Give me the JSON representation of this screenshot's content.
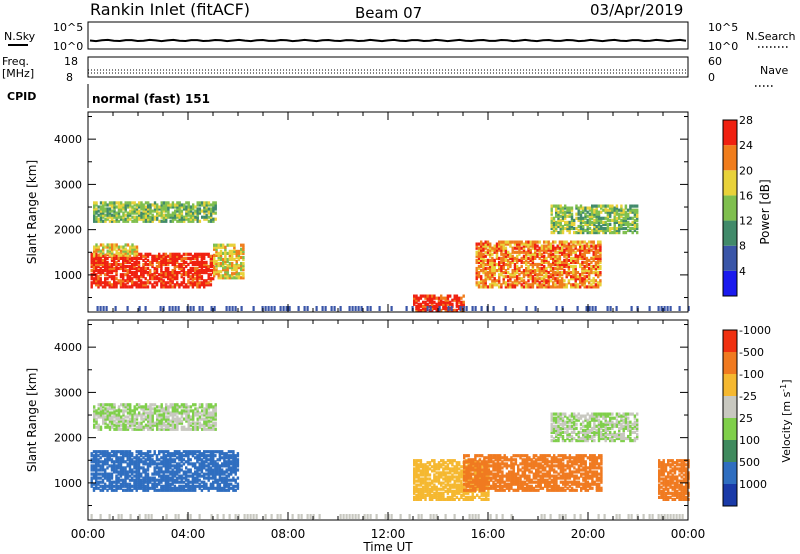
{
  "header": {
    "station": "Rankin Inlet (fitACF)",
    "beam": "Beam 07",
    "date": "03/Apr/2019"
  },
  "top_panels": {
    "nsky_label": "N.Sky",
    "nsky_ticks": [
      "10^5",
      "10^0"
    ],
    "nsearch_label": "N.Search",
    "nsearch_ticks": [
      "10^5",
      "10^0"
    ],
    "freq_label_1": "Freq.",
    "freq_label_2": "[MHz]",
    "freq_ticks": [
      "18",
      "8"
    ],
    "nave_label": "Nave",
    "nave_ticks": [
      "60",
      "0"
    ],
    "cpid_label": "CPID",
    "cpid_text": "normal (fast) 151"
  },
  "chart_data": [
    {
      "type": "heatmap",
      "name": "power",
      "ylabel": "Slant Range [km]",
      "yticks": [
        1000,
        2000,
        3000,
        4000
      ],
      "ylim": [
        180,
        4600
      ],
      "xlim_hours": [
        0,
        24
      ],
      "colorbar_label": "Power [dB]",
      "colorbar_ticks": [
        "4",
        "8",
        "12",
        "16",
        "20",
        "24",
        "28"
      ],
      "colorbar_colors": [
        "#1a1aee",
        "#3a56a8",
        "#418a6a",
        "#7fbf4e",
        "#e8d23a",
        "#f07d1c",
        "#f02010"
      ],
      "echo_regions": [
        {
          "t": [
            0.1,
            5.0
          ],
          "r": [
            700,
            1450
          ],
          "level": 6
        },
        {
          "t": [
            0.2,
            2.0
          ],
          "r": [
            1400,
            1650
          ],
          "level": 4
        },
        {
          "t": [
            5.0,
            6.2
          ],
          "r": [
            900,
            1650
          ],
          "level": 4
        },
        {
          "t": [
            0.2,
            5.1
          ],
          "r": [
            2150,
            2600
          ],
          "level": 3
        },
        {
          "t": [
            13.0,
            15.0
          ],
          "r": [
            180,
            500
          ],
          "level": 6
        },
        {
          "t": [
            15.5,
            20.5
          ],
          "r": [
            700,
            1700
          ],
          "level": 5
        },
        {
          "t": [
            18.5,
            22.0
          ],
          "r": [
            1900,
            2500
          ],
          "level": 3
        }
      ]
    },
    {
      "type": "heatmap",
      "name": "velocity",
      "ylabel": "Slant Range [km]",
      "yticks": [
        1000,
        2000,
        3000,
        4000
      ],
      "ylim": [
        180,
        4600
      ],
      "xlim_hours": [
        0,
        24
      ],
      "xticks": [
        "00:00",
        "04:00",
        "08:00",
        "12:00",
        "16:00",
        "20:00",
        "00:00"
      ],
      "xlabel": "Time UT",
      "colorbar_label": "Velocity [m s^-1]",
      "colorbar_ticks": [
        "1000",
        "500",
        "100",
        "25",
        "-25",
        "-100",
        "-500",
        "-1000"
      ],
      "colorbar_colors": [
        "#1a3aa8",
        "#2f6ec0",
        "#3f8a5e",
        "#7fcf4a",
        "#c8c8c0",
        "#f5b830",
        "#f07a20",
        "#f03010"
      ],
      "echo_regions": [
        {
          "t": [
            0.1,
            6.0
          ],
          "r": [
            800,
            1700
          ],
          "v": 500
        },
        {
          "t": [
            0.2,
            5.1
          ],
          "r": [
            2150,
            2700
          ],
          "v": 0
        },
        {
          "t": [
            13.0,
            16.0
          ],
          "r": [
            600,
            1500
          ],
          "v": -100
        },
        {
          "t": [
            15.0,
            20.5
          ],
          "r": [
            800,
            1600
          ],
          "v": -500
        },
        {
          "t": [
            18.5,
            22.0
          ],
          "r": [
            1900,
            2500
          ],
          "v": 0
        },
        {
          "t": [
            22.8,
            24.0
          ],
          "r": [
            600,
            1500
          ],
          "v": -500
        }
      ]
    }
  ]
}
